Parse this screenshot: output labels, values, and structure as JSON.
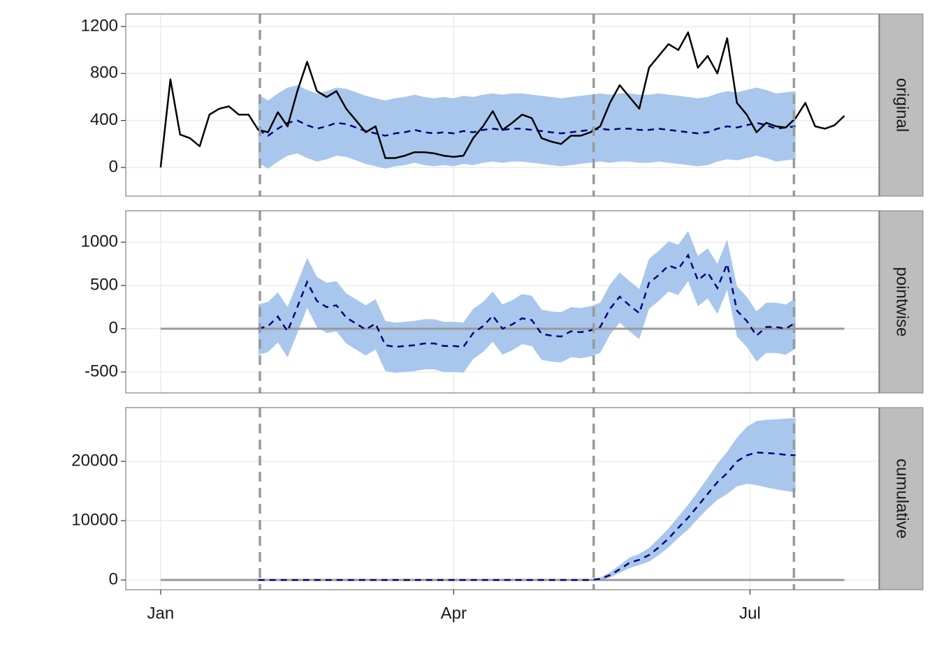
{
  "chart_data": [
    {
      "type": "line",
      "label": "original",
      "xlim": [
        -10.7,
        220.6
      ],
      "xticks": [
        0,
        90,
        181
      ],
      "ylim": [
        -244,
        1307
      ],
      "yticks": [
        0,
        400,
        800,
        1200
      ],
      "vlines": [
        30.5,
        133,
        194.5
      ],
      "grid": true,
      "color": "#000000",
      "prediction_color": "#000080",
      "band_color": "#a9c7ec",
      "vline_color": "#9a9a9a",
      "x": [
        0,
        3,
        6,
        9,
        12,
        15,
        18,
        21,
        24,
        27,
        30,
        33,
        36,
        39,
        42,
        45,
        48,
        51,
        54,
        57,
        60,
        63,
        66,
        69,
        72,
        75,
        78,
        81,
        84,
        87,
        90,
        93,
        96,
        99,
        102,
        105,
        108,
        111,
        114,
        117,
        120,
        123,
        126,
        129,
        132,
        135,
        138,
        141,
        144,
        147,
        150,
        153,
        156,
        159,
        162,
        165,
        168,
        171,
        174,
        177,
        180,
        183,
        186,
        189,
        192,
        195,
        198,
        201,
        204,
        207,
        210
      ],
      "values": [
        0,
        750,
        280,
        250,
        180,
        450,
        500,
        520,
        450,
        450,
        320,
        300,
        470,
        350,
        650,
        900,
        650,
        600,
        650,
        500,
        400,
        300,
        350,
        80,
        80,
        100,
        130,
        130,
        120,
        100,
        90,
        100,
        250,
        350,
        480,
        320,
        380,
        450,
        420,
        250,
        220,
        200,
        270,
        270,
        300,
        350,
        550,
        700,
        600,
        500,
        850,
        950,
        1050,
        1000,
        1150,
        850,
        950,
        800,
        1100,
        550,
        450,
        300,
        380,
        350,
        340,
        420,
        550,
        350,
        330,
        360,
        440
      ],
      "prediction": [
        null,
        null,
        null,
        null,
        null,
        null,
        null,
        null,
        null,
        null,
        320,
        270,
        330,
        380,
        400,
        360,
        330,
        350,
        380,
        370,
        340,
        310,
        290,
        270,
        290,
        300,
        320,
        300,
        290,
        300,
        290,
        310,
        300,
        320,
        330,
        320,
        330,
        330,
        320,
        310,
        300,
        290,
        300,
        310,
        320,
        330,
        320,
        330,
        330,
        320,
        320,
        330,
        320,
        310,
        300,
        290,
        300,
        330,
        350,
        340,
        360,
        380,
        360,
        330,
        340,
        350,
        null,
        null,
        null,
        null,
        null
      ],
      "lower": [
        null,
        null,
        null,
        null,
        null,
        null,
        null,
        null,
        null,
        null,
        40,
        -10,
        50,
        100,
        120,
        80,
        50,
        70,
        100,
        90,
        60,
        30,
        10,
        -10,
        10,
        20,
        40,
        20,
        10,
        20,
        10,
        30,
        20,
        40,
        50,
        40,
        50,
        50,
        40,
        30,
        20,
        10,
        20,
        30,
        40,
        50,
        40,
        50,
        50,
        40,
        40,
        50,
        40,
        30,
        20,
        10,
        20,
        50,
        70,
        60,
        80,
        100,
        80,
        50,
        60,
        70,
        null,
        null,
        null,
        null,
        null
      ],
      "upper": [
        null,
        null,
        null,
        null,
        null,
        null,
        null,
        null,
        null,
        null,
        620,
        570,
        630,
        680,
        700,
        660,
        630,
        650,
        680,
        670,
        640,
        610,
        590,
        570,
        590,
        600,
        620,
        600,
        590,
        600,
        590,
        610,
        600,
        620,
        630,
        620,
        630,
        630,
        620,
        610,
        600,
        590,
        600,
        610,
        620,
        630,
        620,
        630,
        630,
        620,
        620,
        630,
        620,
        610,
        600,
        590,
        600,
        630,
        650,
        640,
        660,
        680,
        660,
        630,
        640,
        650,
        null,
        null,
        null,
        null,
        null
      ]
    },
    {
      "type": "line",
      "label": "pointwise",
      "xlim": [
        -10.7,
        220.6
      ],
      "xticks": [
        0,
        90,
        181
      ],
      "ylim": [
        -742,
        1363
      ],
      "yticks": [
        -500,
        0,
        500,
        1000
      ],
      "vlines": [
        30.5,
        133,
        194.5
      ],
      "grid": true,
      "hline": 0,
      "hline_range": [
        0,
        210
      ],
      "prediction_color": "#000080",
      "band_color": "#a9c7ec",
      "vline_color": "#9a9a9a",
      "hline_color": "#999999",
      "x": [
        30,
        33,
        36,
        39,
        42,
        45,
        48,
        51,
        54,
        57,
        60,
        63,
        66,
        69,
        72,
        75,
        78,
        81,
        84,
        87,
        90,
        93,
        96,
        99,
        102,
        105,
        108,
        111,
        114,
        117,
        120,
        123,
        126,
        129,
        132,
        135,
        138,
        141,
        144,
        147,
        150,
        153,
        156,
        159,
        162,
        165,
        168,
        171,
        174,
        177,
        180,
        183,
        186,
        189,
        192,
        195
      ],
      "prediction": [
        0,
        30,
        140,
        -30,
        250,
        540,
        320,
        250,
        270,
        130,
        60,
        -10,
        60,
        -190,
        -210,
        -200,
        -190,
        -170,
        -170,
        -200,
        -200,
        -210,
        -50,
        30,
        150,
        0,
        50,
        120,
        100,
        -60,
        -80,
        -90,
        -30,
        -40,
        -20,
        20,
        230,
        370,
        270,
        180,
        530,
        620,
        730,
        690,
        850,
        560,
        650,
        470,
        750,
        210,
        90,
        -80,
        20,
        20,
        0,
        70
      ],
      "lower": [
        -300,
        -270,
        -160,
        -330,
        -50,
        240,
        20,
        -50,
        -30,
        -170,
        -240,
        -310,
        -240,
        -490,
        -510,
        -500,
        -490,
        -470,
        -470,
        -500,
        -500,
        -510,
        -350,
        -270,
        -150,
        -300,
        -250,
        -180,
        -200,
        -360,
        -380,
        -390,
        -330,
        -340,
        -320,
        -280,
        -70,
        70,
        -30,
        -120,
        230,
        320,
        430,
        390,
        550,
        260,
        350,
        170,
        450,
        -90,
        -210,
        -380,
        -280,
        -280,
        -300,
        -230
      ],
      "upper": [
        280,
        310,
        420,
        250,
        530,
        820,
        600,
        530,
        550,
        410,
        340,
        270,
        340,
        90,
        70,
        80,
        90,
        110,
        110,
        80,
        80,
        70,
        230,
        310,
        430,
        280,
        330,
        400,
        380,
        220,
        200,
        190,
        250,
        240,
        260,
        300,
        510,
        650,
        550,
        460,
        810,
        900,
        1010,
        970,
        1130,
        840,
        930,
        750,
        1030,
        490,
        370,
        200,
        300,
        300,
        280,
        350
      ]
    },
    {
      "type": "line",
      "label": "cumulative",
      "xlim": [
        -10.7,
        220.6
      ],
      "xticks": [
        {
          "value": 0,
          "label": "Jan"
        },
        {
          "value": 90,
          "label": "Apr"
        },
        {
          "value": 181,
          "label": "Jul"
        }
      ],
      "ylim": [
        -1647,
        29059
      ],
      "yticks": [
        0,
        10000,
        20000
      ],
      "vlines": [
        30.5,
        133,
        194.5
      ],
      "grid": true,
      "hline": 0,
      "hline_range": [
        0,
        210
      ],
      "prediction_color": "#000080",
      "band_color": "#a9c7ec",
      "vline_color": "#9a9a9a",
      "hline_color": "#999999",
      "x": [
        30,
        33,
        36,
        39,
        42,
        45,
        48,
        51,
        54,
        57,
        60,
        63,
        66,
        69,
        72,
        75,
        78,
        81,
        84,
        87,
        90,
        93,
        96,
        99,
        102,
        105,
        108,
        111,
        114,
        117,
        120,
        123,
        126,
        129,
        132,
        135,
        138,
        141,
        144,
        147,
        150,
        153,
        156,
        159,
        162,
        165,
        168,
        171,
        174,
        177,
        180,
        183,
        186,
        189,
        192,
        195
      ],
      "prediction": [
        0,
        0,
        0,
        0,
        0,
        0,
        0,
        0,
        0,
        0,
        0,
        0,
        0,
        0,
        0,
        0,
        0,
        0,
        0,
        0,
        0,
        0,
        0,
        0,
        0,
        0,
        0,
        0,
        0,
        0,
        0,
        0,
        0,
        0,
        0,
        200,
        800,
        1800,
        2900,
        3400,
        4200,
        5500,
        7000,
        8800,
        10500,
        12500,
        14500,
        16500,
        18000,
        20000,
        21000,
        21500,
        21400,
        21300,
        21100,
        21000
      ],
      "lower": [
        0,
        0,
        0,
        0,
        0,
        0,
        0,
        0,
        0,
        0,
        0,
        0,
        0,
        0,
        0,
        0,
        0,
        0,
        0,
        0,
        0,
        0,
        0,
        0,
        0,
        0,
        0,
        0,
        0,
        0,
        0,
        0,
        0,
        0,
        0,
        0,
        400,
        1200,
        2000,
        2500,
        3100,
        4200,
        5500,
        7100,
        8500,
        10300,
        12000,
        13500,
        14500,
        15800,
        16200,
        16000,
        15600,
        15300,
        15000,
        14800
      ],
      "upper": [
        0,
        0,
        0,
        0,
        0,
        0,
        0,
        0,
        0,
        0,
        0,
        0,
        0,
        0,
        0,
        0,
        0,
        0,
        0,
        0,
        0,
        0,
        0,
        0,
        0,
        0,
        0,
        0,
        0,
        0,
        0,
        0,
        0,
        0,
        0,
        400,
        1300,
        2500,
        3800,
        4400,
        5400,
        7000,
        8700,
        10700,
        12700,
        14900,
        17200,
        19600,
        21600,
        24000,
        25800,
        26800,
        27000,
        27100,
        27200,
        27300
      ]
    }
  ]
}
